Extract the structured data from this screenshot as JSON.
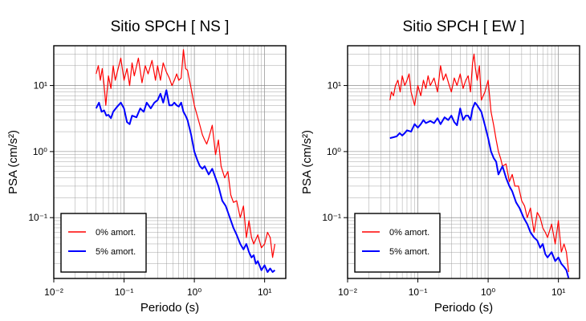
{
  "chart_data": [
    {
      "type": "line",
      "title": "Sitio SPCH [ NS ]",
      "xlabel": "Periodo (s)",
      "ylabel": "PSA (cm/s²)",
      "xscale": "log",
      "yscale": "log",
      "xlim": [
        0.01,
        20
      ],
      "ylim": [
        0.012,
        40
      ],
      "xticks": [
        "10⁻²",
        "10⁻¹",
        "10⁰",
        "10¹"
      ],
      "yticks": [
        "10⁻¹",
        "10⁰",
        "10¹"
      ],
      "grid": true,
      "legend_position": "bottom-left",
      "series": [
        {
          "name": "0% amort.",
          "color": "#ff0000",
          "x": [
            0.04,
            0.043,
            0.046,
            0.049,
            0.052,
            0.055,
            0.06,
            0.065,
            0.07,
            0.075,
            0.08,
            0.09,
            0.1,
            0.11,
            0.12,
            0.13,
            0.14,
            0.16,
            0.18,
            0.2,
            0.22,
            0.25,
            0.28,
            0.3,
            0.33,
            0.36,
            0.4,
            0.44,
            0.48,
            0.52,
            0.56,
            0.6,
            0.65,
            0.7,
            0.75,
            0.8,
            0.9,
            1.0,
            1.1,
            1.2,
            1.3,
            1.4,
            1.5,
            1.6,
            1.8,
            2.0,
            2.2,
            2.4,
            2.7,
            3.0,
            3.3,
            3.6,
            4.0,
            4.5,
            5.0,
            5.5,
            6.0,
            6.5,
            7.0,
            8.0,
            9.0,
            10.0,
            11.0,
            12.0,
            13.0,
            14.0
          ],
          "y": [
            15,
            20,
            12,
            18,
            10,
            5,
            14,
            9,
            20,
            12,
            16,
            26,
            12,
            18,
            10,
            22,
            14,
            26,
            11,
            20,
            15,
            24,
            12,
            20,
            12,
            22,
            16,
            13,
            10,
            12,
            15,
            12,
            13,
            35,
            18,
            17,
            9,
            5,
            3.5,
            2.5,
            1.8,
            1.5,
            1.3,
            1.6,
            2.5,
            0.9,
            1.5,
            0.6,
            0.4,
            0.5,
            0.22,
            0.17,
            0.18,
            0.1,
            0.15,
            0.05,
            0.09,
            0.05,
            0.04,
            0.055,
            0.035,
            0.04,
            0.06,
            0.05,
            0.025,
            0.04
          ]
        },
        {
          "name": "5% amort.",
          "color": "#0000ff",
          "x": [
            0.04,
            0.044,
            0.048,
            0.052,
            0.056,
            0.06,
            0.065,
            0.07,
            0.08,
            0.09,
            0.1,
            0.11,
            0.12,
            0.13,
            0.15,
            0.17,
            0.19,
            0.21,
            0.24,
            0.27,
            0.3,
            0.33,
            0.36,
            0.4,
            0.44,
            0.48,
            0.52,
            0.56,
            0.6,
            0.65,
            0.7,
            0.75,
            0.8,
            0.9,
            1.0,
            1.1,
            1.2,
            1.3,
            1.4,
            1.6,
            1.8,
            2.0,
            2.2,
            2.5,
            2.8,
            3.2,
            3.6,
            4.0,
            4.5,
            5.0,
            5.5,
            6.0,
            6.5,
            7.0,
            7.5,
            8.0,
            9.0,
            10.0,
            11.0,
            12.0,
            13.0,
            14.0
          ],
          "y": [
            4.5,
            5.5,
            4.0,
            4.2,
            3.5,
            3.6,
            3.2,
            4.0,
            4.8,
            5.5,
            4.5,
            2.8,
            2.6,
            3.5,
            3.3,
            4.5,
            4.0,
            5.5,
            4.5,
            5.5,
            6.0,
            7.5,
            5.5,
            8.5,
            5.0,
            5.0,
            5.5,
            5.0,
            4.8,
            5.5,
            4.0,
            3.5,
            3.0,
            1.8,
            1.0,
            0.75,
            0.6,
            0.55,
            0.6,
            0.45,
            0.55,
            0.4,
            0.3,
            0.18,
            0.15,
            0.1,
            0.07,
            0.055,
            0.04,
            0.033,
            0.04,
            0.03,
            0.025,
            0.027,
            0.02,
            0.022,
            0.016,
            0.019,
            0.015,
            0.017,
            0.015,
            0.016
          ]
        }
      ]
    },
    {
      "type": "line",
      "title": "Sitio SPCH [ EW ]",
      "xlabel": "Periodo (s)",
      "ylabel": "PSA (cm/s²)",
      "xscale": "log",
      "yscale": "log",
      "xlim": [
        0.01,
        20
      ],
      "ylim": [
        0.012,
        40
      ],
      "xticks": [
        "10⁻²",
        "10⁻¹",
        "10⁰",
        "10¹"
      ],
      "yticks": [
        "10⁻¹",
        "10⁰",
        "10¹"
      ],
      "grid": true,
      "legend_position": "bottom-left",
      "series": [
        {
          "name": "0% amort.",
          "color": "#ff0000",
          "x": [
            0.04,
            0.042,
            0.045,
            0.048,
            0.052,
            0.056,
            0.06,
            0.065,
            0.07,
            0.075,
            0.08,
            0.09,
            0.1,
            0.11,
            0.12,
            0.13,
            0.14,
            0.15,
            0.17,
            0.19,
            0.21,
            0.23,
            0.25,
            0.28,
            0.3,
            0.33,
            0.36,
            0.4,
            0.44,
            0.48,
            0.52,
            0.56,
            0.6,
            0.63,
            0.66,
            0.7,
            0.75,
            0.8,
            0.9,
            1.0,
            1.1,
            1.2,
            1.3,
            1.4,
            1.5,
            1.6,
            1.8,
            2.0,
            2.2,
            2.4,
            2.7,
            3.0,
            3.3,
            3.6,
            4.0,
            4.5,
            5.0,
            5.5,
            6.0,
            6.5,
            7.0,
            8.0,
            9.0,
            10.0,
            11.0,
            12.0,
            13.0,
            14.0
          ],
          "y": [
            6,
            8,
            7,
            10,
            12,
            8,
            14,
            10,
            12,
            15,
            8,
            5,
            10,
            7,
            12,
            9,
            14,
            10,
            13,
            8,
            20,
            12,
            15,
            10,
            8,
            13,
            10,
            15,
            9,
            12,
            14,
            8,
            22,
            30,
            18,
            12,
            20,
            6,
            8,
            12,
            4,
            2.5,
            1.5,
            1.0,
            0.8,
            0.6,
            0.65,
            0.35,
            0.45,
            0.3,
            0.3,
            0.18,
            0.15,
            0.1,
            0.14,
            0.06,
            0.12,
            0.1,
            0.07,
            0.06,
            0.05,
            0.08,
            0.04,
            0.09,
            0.03,
            0.04,
            0.03,
            0.015
          ]
        },
        {
          "name": "5% amort.",
          "color": "#0000ff",
          "x": [
            0.04,
            0.045,
            0.05,
            0.055,
            0.06,
            0.065,
            0.07,
            0.08,
            0.09,
            0.1,
            0.11,
            0.12,
            0.13,
            0.15,
            0.17,
            0.19,
            0.21,
            0.24,
            0.27,
            0.3,
            0.33,
            0.36,
            0.4,
            0.44,
            0.48,
            0.52,
            0.56,
            0.6,
            0.65,
            0.7,
            0.8,
            0.9,
            1.0,
            1.1,
            1.2,
            1.3,
            1.4,
            1.6,
            1.8,
            2.0,
            2.2,
            2.5,
            2.8,
            3.2,
            3.6,
            4.0,
            4.5,
            5.0,
            5.5,
            6.0,
            6.5,
            7.0,
            8.0,
            9.0,
            10.0,
            11.0,
            12.0,
            13.0,
            14.0
          ],
          "y": [
            1.6,
            1.65,
            1.7,
            1.9,
            1.75,
            1.9,
            2.1,
            2.0,
            2.6,
            2.3,
            2.6,
            3.0,
            2.7,
            2.9,
            2.7,
            3.2,
            2.6,
            3.3,
            3.0,
            3.5,
            2.8,
            2.5,
            4.5,
            3.0,
            3.5,
            3.5,
            3.0,
            4.5,
            5.5,
            5.0,
            4.0,
            2.5,
            1.6,
            1.0,
            0.8,
            0.7,
            0.45,
            0.6,
            0.4,
            0.3,
            0.25,
            0.17,
            0.14,
            0.1,
            0.08,
            0.06,
            0.05,
            0.045,
            0.035,
            0.04,
            0.028,
            0.025,
            0.03,
            0.022,
            0.025,
            0.02,
            0.018,
            0.016,
            0.012
          ]
        }
      ]
    }
  ]
}
